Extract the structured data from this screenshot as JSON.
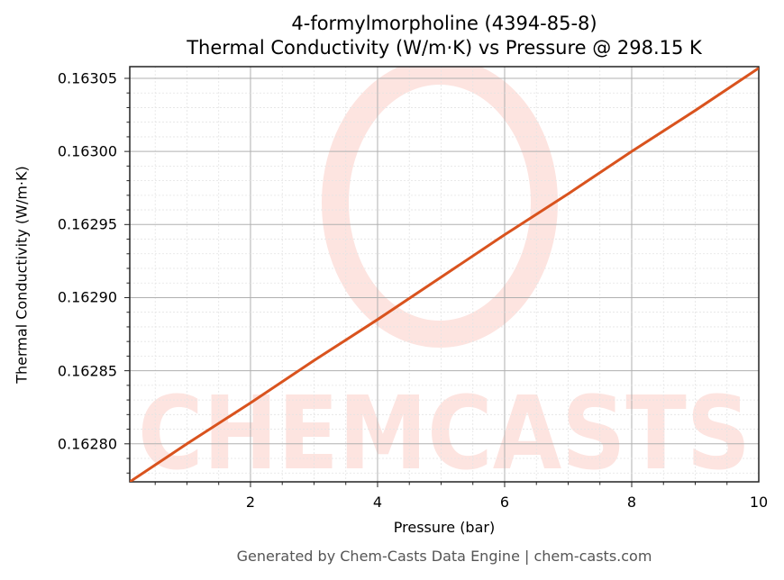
{
  "chart": {
    "title_line1": "4-formylmorpholine (4394-85-8)",
    "title_line2": "Thermal Conductivity (W/m·K) vs Pressure @ 298.15 K",
    "xlabel": "Pressure (bar)",
    "ylabel": "Thermal Conductivity (W/m·K)",
    "footer": "Generated by Chem-Casts Data Engine | chem-casts.com",
    "watermark": "CHEMCASTS",
    "line_color": "#d9531e",
    "yticks": [
      "0.16305",
      "0.16300",
      "0.16295",
      "0.16290",
      "0.16285",
      "0.16280"
    ],
    "xticks": [
      "2",
      "4",
      "6",
      "8",
      "10"
    ]
  },
  "chart_data": {
    "type": "line",
    "title": "4-formylmorpholine (4394-85-8) Thermal Conductivity (W/m·K) vs Pressure @ 298.15 K",
    "xlabel": "Pressure (bar)",
    "ylabel": "Thermal Conductivity (W/m·K)",
    "xlim": [
      0.1,
      10
    ],
    "ylim": [
      0.162774,
      0.163058
    ],
    "grid": true,
    "legend": null,
    "series": [
      {
        "name": "Thermal Conductivity",
        "color": "#d9531e",
        "x": [
          0.1,
          1,
          2,
          3,
          4,
          5,
          6,
          7,
          8,
          9,
          10
        ],
        "y": [
          0.162774,
          0.1628,
          0.162828,
          0.162857,
          0.162885,
          0.162914,
          0.162943,
          0.162971,
          0.163,
          0.163028,
          0.163057
        ]
      }
    ]
  }
}
